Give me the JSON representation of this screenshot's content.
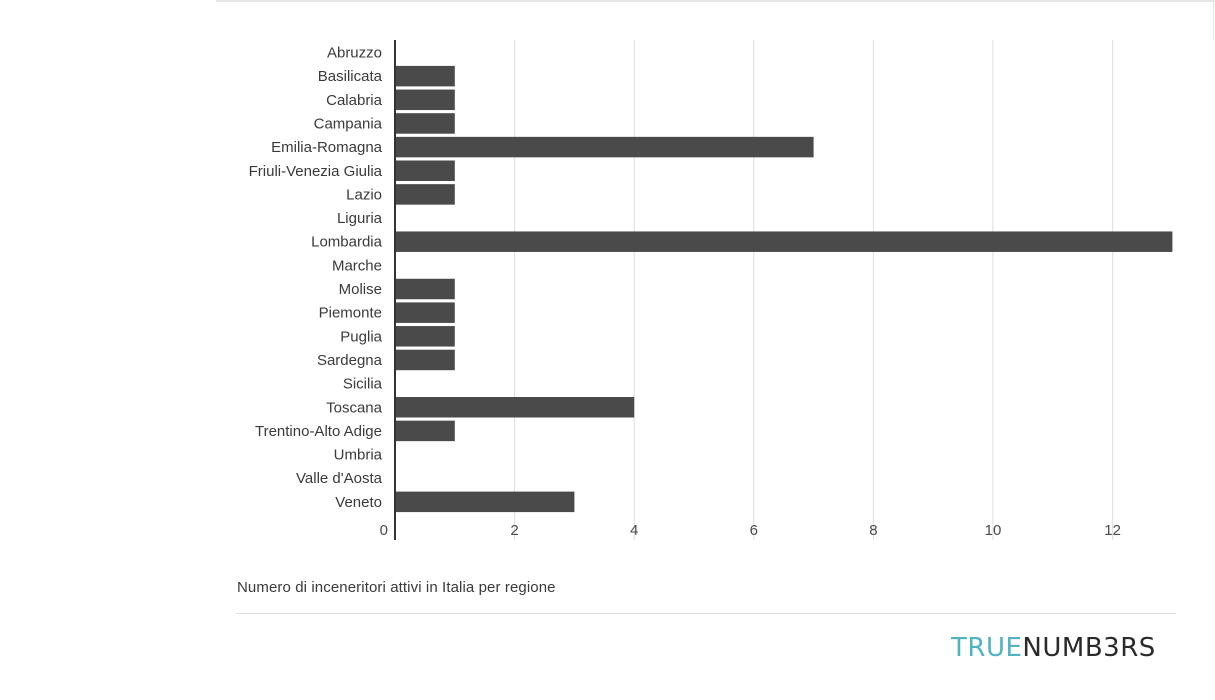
{
  "chart_data": {
    "type": "bar",
    "orientation": "horizontal",
    "categories": [
      "Abruzzo",
      "Basilicata",
      "Calabria",
      "Campania",
      "Emilia-Romagna",
      "Friuli-Venezia Giulia",
      "Lazio",
      "Liguria",
      "Lombardia",
      "Marche",
      "Molise",
      "Piemonte",
      "Puglia",
      "Sardegna",
      "Sicilia",
      "Toscana",
      "Trentino-Alto Adige",
      "Umbria",
      "Valle d'Aosta",
      "Veneto"
    ],
    "values": [
      0,
      1,
      1,
      1,
      7,
      1,
      1,
      0,
      13,
      0,
      1,
      1,
      1,
      1,
      0,
      4,
      1,
      0,
      0,
      3
    ],
    "xlim": [
      0,
      13.5
    ],
    "xticks": [
      "0",
      "2",
      "4",
      "6",
      "8",
      "10",
      "12"
    ],
    "grid": true,
    "bar_color": "#4a4a4a",
    "caption": "Numero di inceneritori attivi in Italia per regione"
  },
  "brand": {
    "part1": "TRUE",
    "part2": "NUMB3RS",
    "color1": "#4fb3c2",
    "color2": "#2a2a2a"
  }
}
